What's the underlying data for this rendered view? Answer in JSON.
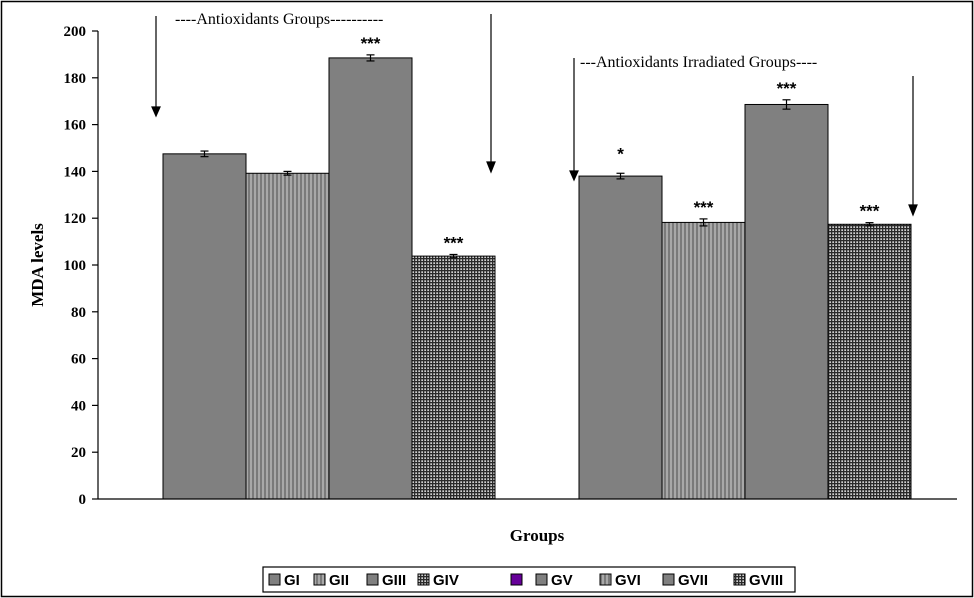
{
  "chart_data": {
    "type": "bar",
    "categories": [
      "GI",
      "GII",
      "GIII",
      "GIV",
      "GV",
      "GVI",
      "GVII",
      "GVIII"
    ],
    "values": [
      147.5,
      139.2,
      188.5,
      103.8,
      138.0,
      118.2,
      168.6,
      117.4
    ],
    "errors": [
      1.2,
      0.8,
      1.3,
      0.7,
      1.2,
      1.5,
      2.0,
      0.7
    ],
    "significance": [
      "",
      "",
      "***",
      "***",
      "*",
      "***",
      "***",
      "***"
    ],
    "xlabel": "Groups",
    "ylabel": "MDA levels",
    "ylim": [
      0,
      200
    ],
    "yticks": [
      "0",
      "20",
      "40",
      "60",
      "80",
      "100",
      "120",
      "140",
      "160",
      "180",
      "200"
    ],
    "grid": false,
    "legend_position": "bottom",
    "legend": [
      "GI",
      "GII",
      "GIII",
      "GIV",
      "",
      "GV",
      "GVI",
      "GVII",
      "GVIII"
    ],
    "legend_patterns": [
      "solid",
      "vstripe",
      "solid",
      "grid",
      "purple",
      "solid",
      "vstripe",
      "solid",
      "grid"
    ],
    "annotations": [
      "----Antioxidants Groups----------",
      "---Antioxidants Irradiated Groups----"
    ],
    "bar_patterns": [
      "solid",
      "vstripe",
      "solid",
      "grid",
      "solid",
      "vstripe",
      "solid",
      "grid"
    ],
    "colors": {
      "bar": "#808080",
      "outline": "#000000",
      "purple": "#660099"
    }
  }
}
